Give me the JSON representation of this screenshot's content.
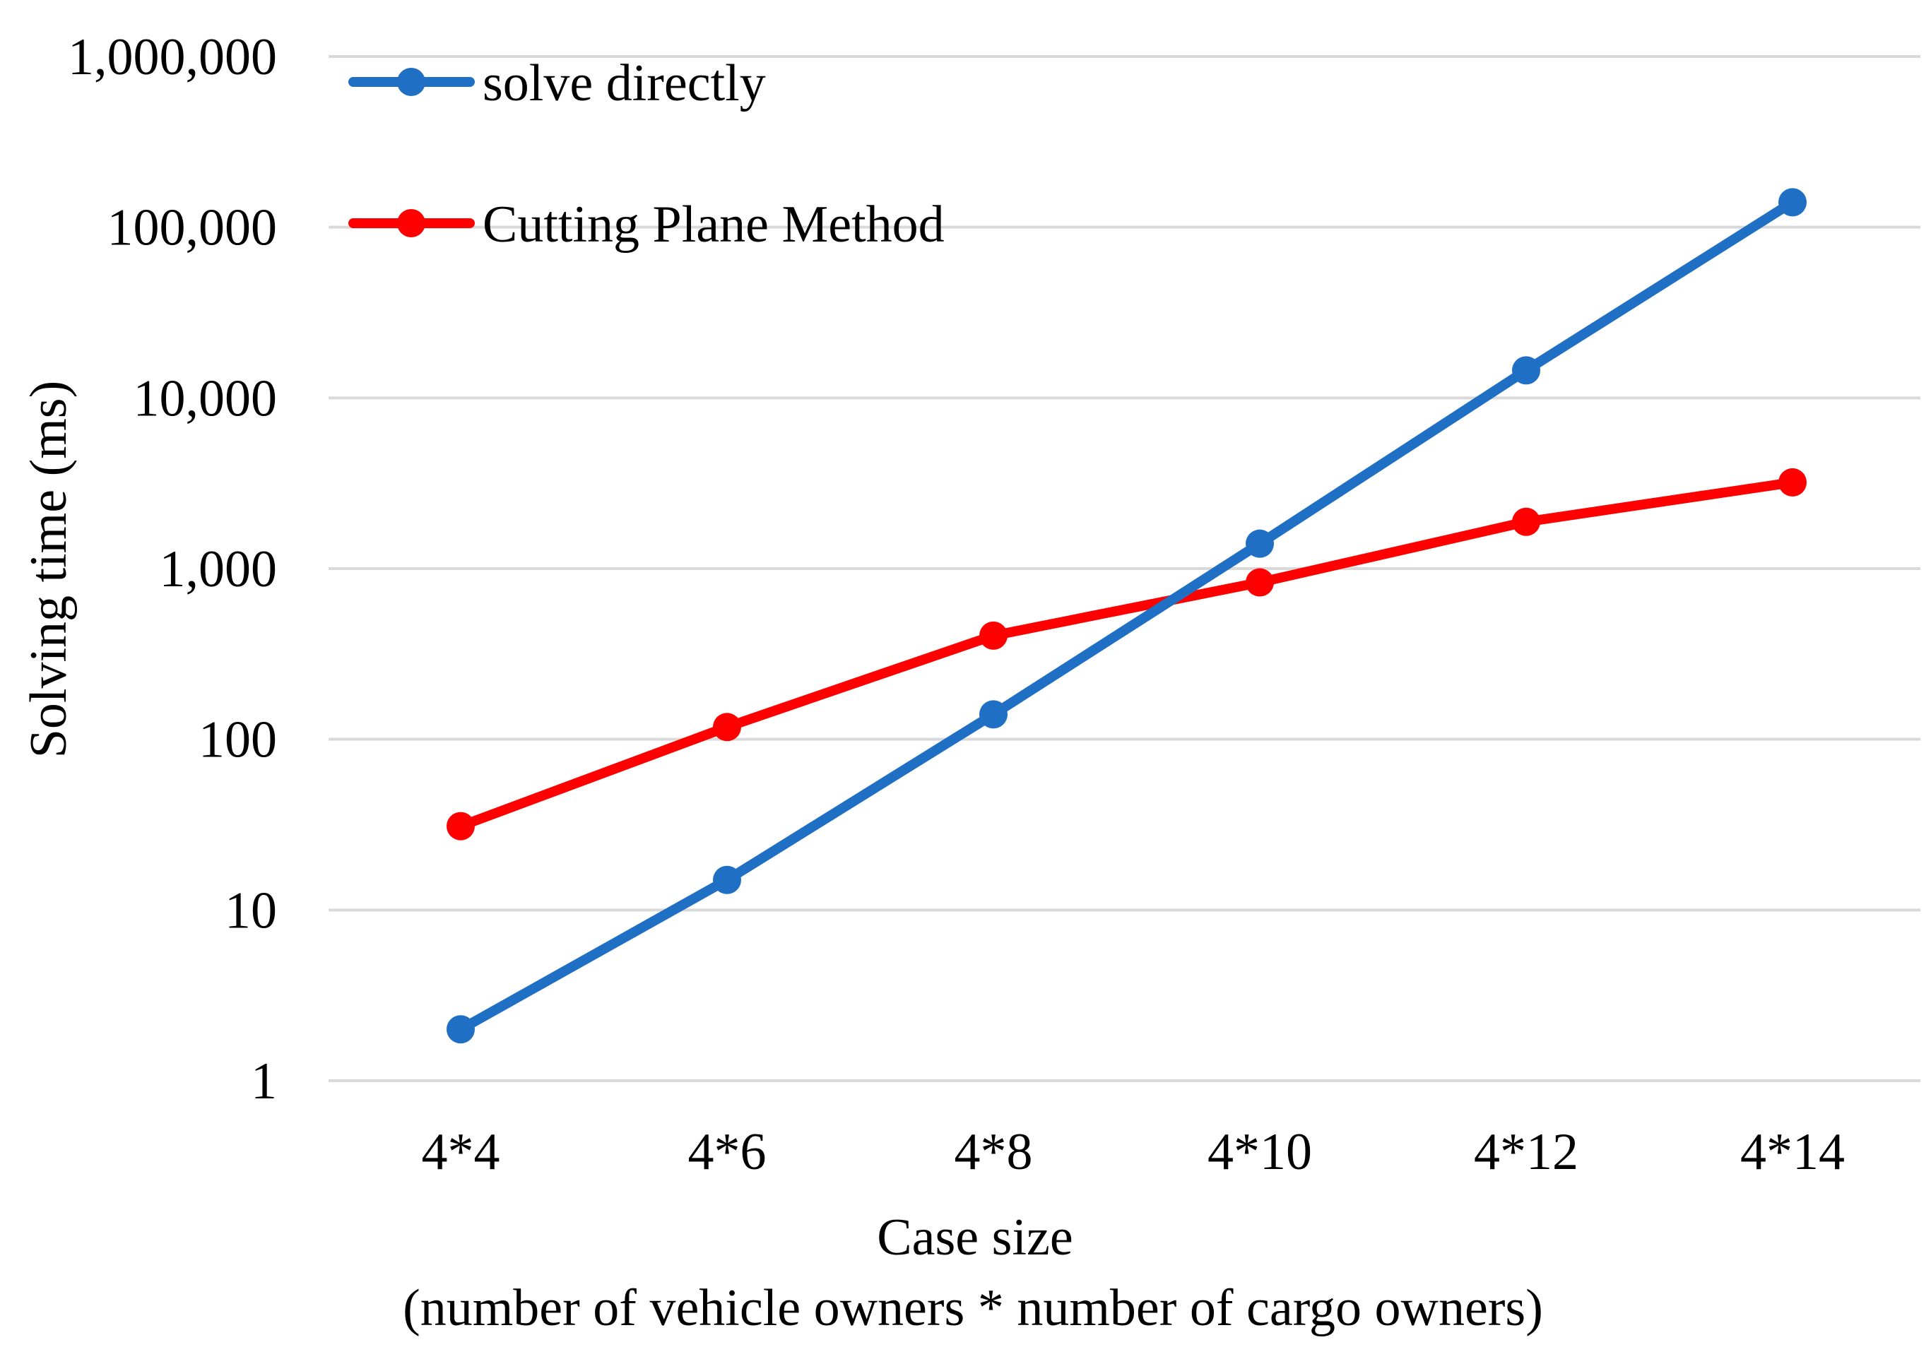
{
  "chart_data": {
    "type": "line",
    "title": "",
    "xlabel": "Case size",
    "xlabel_sub": "(number of vehicle owners * number of cargo owners)",
    "ylabel": "Solving time (ms)",
    "yscale": "log",
    "ylim": [
      1,
      1000000
    ],
    "yticks": [
      1,
      10,
      100,
      1000,
      10000,
      100000,
      1000000
    ],
    "ytick_labels": [
      "1",
      "10",
      "100",
      "1,000",
      "10,000",
      "100,000",
      "1,000,000"
    ],
    "categories": [
      "4*4",
      "4*6",
      "4*8",
      "4*10",
      "4*12",
      "4*14"
    ],
    "grid": true,
    "legend_position": "top-left",
    "series": [
      {
        "name": "solve directly",
        "color": "#1f6fc4",
        "values": [
          2,
          15,
          140,
          1400,
          14500,
          140000
        ]
      },
      {
        "name": "Cutting Plane Method",
        "color": "#ff0000",
        "values": [
          31,
          118,
          405,
          830,
          1880,
          3200
        ]
      }
    ]
  }
}
